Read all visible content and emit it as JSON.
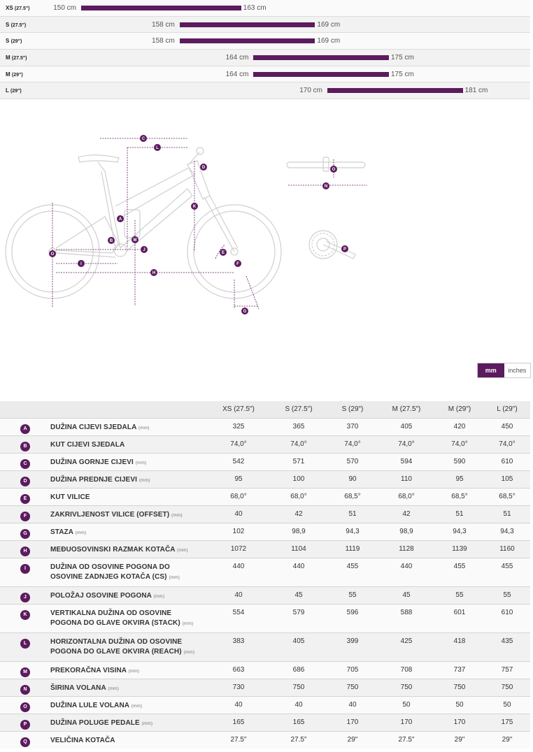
{
  "size_chart": {
    "rows": [
      {
        "size": "XS",
        "wheel": "(27.5\")",
        "min": "150 cm",
        "max": "163 cm",
        "min_cm": 150,
        "max_cm": 163
      },
      {
        "size": "S",
        "wheel": "(27.5\")",
        "min": "158 cm",
        "max": "169 cm",
        "min_cm": 158,
        "max_cm": 169
      },
      {
        "size": "S",
        "wheel": "(29\")",
        "min": "158 cm",
        "max": "169 cm",
        "min_cm": 158,
        "max_cm": 169
      },
      {
        "size": "M",
        "wheel": "(27.5\")",
        "min": "164 cm",
        "max": "175 cm",
        "min_cm": 164,
        "max_cm": 175
      },
      {
        "size": "M",
        "wheel": "(29\")",
        "min": "164 cm",
        "max": "175 cm",
        "min_cm": 164,
        "max_cm": 175
      },
      {
        "size": "L",
        "wheel": "(29\")",
        "min": "170 cm",
        "max": "181 cm",
        "min_cm": 170,
        "max_cm": 181
      }
    ]
  },
  "unit_toggle": {
    "mm": "mm",
    "inches": "inches",
    "active": "mm"
  },
  "colors": {
    "accent": "#5b1b5e",
    "drawing": "#cfcfcf"
  },
  "diagram_labels": [
    "A",
    "B",
    "C",
    "D",
    "E",
    "F",
    "G",
    "H",
    "I",
    "J",
    "K",
    "L",
    "M",
    "N",
    "O",
    "P",
    "Q"
  ],
  "geometry_table": {
    "headers": [
      "XS (27.5\")",
      "S (27.5\")",
      "S (29\")",
      "M (27.5\")",
      "M (29\")",
      "L (29\")"
    ],
    "rows": [
      {
        "letter": "A",
        "name": "DUŽINA CIJEVI SJEDALA",
        "unit": "(mm)",
        "values": [
          "325",
          "365",
          "370",
          "405",
          "420",
          "450"
        ]
      },
      {
        "letter": "B",
        "name": "KUT CIJEVI SJEDALA",
        "unit": "",
        "values": [
          "74,0°",
          "74,0°",
          "74,0°",
          "74,0°",
          "74,0°",
          "74,0°"
        ]
      },
      {
        "letter": "C",
        "name": "DUŽINA GORNJE CIJEVI",
        "unit": "(mm)",
        "values": [
          "542",
          "571",
          "570",
          "594",
          "590",
          "610"
        ]
      },
      {
        "letter": "D",
        "name": "DUŽINA PREDNJE CIJEVI",
        "unit": "(mm)",
        "values": [
          "95",
          "100",
          "90",
          "110",
          "95",
          "105"
        ]
      },
      {
        "letter": "E",
        "name": "KUT VILICE",
        "unit": "",
        "values": [
          "68,0°",
          "68,0°",
          "68,5°",
          "68,0°",
          "68,5°",
          "68,5°"
        ]
      },
      {
        "letter": "F",
        "name": "ZAKRIVLJENOST VILICE (OFFSET)",
        "unit": "(mm)",
        "values": [
          "40",
          "42",
          "51",
          "42",
          "51",
          "51"
        ]
      },
      {
        "letter": "G",
        "name": "STAZA",
        "unit": "(mm)",
        "values": [
          "102",
          "98,9",
          "94,3",
          "98,9",
          "94,3",
          "94,3"
        ]
      },
      {
        "letter": "H",
        "name": "MEĐUOSOVINSKI RAZMAK KOTAČA",
        "unit": "(mm)",
        "values": [
          "1072",
          "1104",
          "1119",
          "1128",
          "1139",
          "1160"
        ]
      },
      {
        "letter": "I",
        "name": "DUŽINA OD OSOVINE POGONA DO OSOVINE ZADNJEG KOTAČA (CS)",
        "unit": "(mm)",
        "values": [
          "440",
          "440",
          "455",
          "440",
          "455",
          "455"
        ]
      },
      {
        "letter": "J",
        "name": "POLOŽAJ OSOVINE POGONA",
        "unit": "(mm)",
        "values": [
          "40",
          "45",
          "55",
          "45",
          "55",
          "55"
        ]
      },
      {
        "letter": "K",
        "name": "VERTIKALNA DUŽINA OD OSOVINE POGONA DO GLAVE OKVIRA (STACK)",
        "unit": "(mm)",
        "values": [
          "554",
          "579",
          "596",
          "588",
          "601",
          "610"
        ]
      },
      {
        "letter": "L",
        "name": "HORIZONTALNA DUŽINA OD OSOVINE POGONA DO GLAVE OKVIRA (REACH)",
        "unit": "(mm)",
        "values": [
          "383",
          "405",
          "399",
          "425",
          "418",
          "435"
        ]
      },
      {
        "letter": "M",
        "name": "PREKORAČNA VISINA",
        "unit": "(mm)",
        "values": [
          "663",
          "686",
          "705",
          "708",
          "737",
          "757"
        ]
      },
      {
        "letter": "N",
        "name": "ŠIRINA VOLANA",
        "unit": "(mm)",
        "values": [
          "730",
          "750",
          "750",
          "750",
          "750",
          "750"
        ]
      },
      {
        "letter": "O",
        "name": "DUŽINA LULE VOLANA",
        "unit": "(mm)",
        "values": [
          "40",
          "40",
          "40",
          "50",
          "50",
          "50"
        ]
      },
      {
        "letter": "P",
        "name": "DUŽINA POLUGE PEDALE",
        "unit": "(mm)",
        "values": [
          "165",
          "165",
          "170",
          "170",
          "170",
          "175"
        ]
      },
      {
        "letter": "Q",
        "name": "VELIČINA KOTAČA",
        "unit": "",
        "values": [
          "27.5\"",
          "27.5\"",
          "29\"",
          "27.5\"",
          "29\"",
          "29\""
        ]
      }
    ]
  }
}
